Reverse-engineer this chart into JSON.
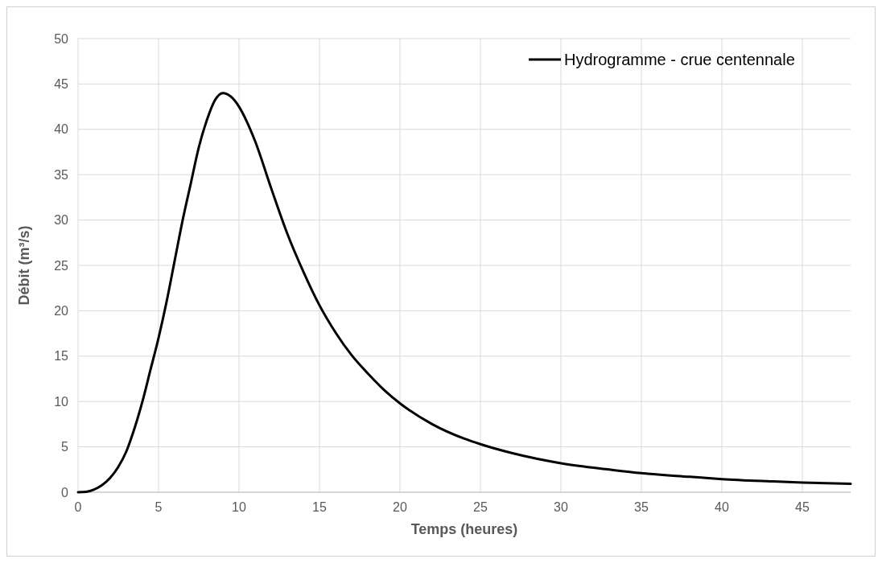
{
  "chart_data": {
    "type": "line",
    "xlabel": "Temps (heures)",
    "ylabel": "Débit (m³/s)",
    "xlim": [
      0,
      48
    ],
    "xticks": [
      0,
      5,
      10,
      15,
      20,
      25,
      30,
      35,
      40,
      45
    ],
    "ylim": [
      0,
      50
    ],
    "yticks": [
      0,
      5,
      10,
      15,
      20,
      25,
      30,
      35,
      40,
      45,
      50
    ],
    "grid": true,
    "legend": "top right",
    "marker": "none",
    "line_style": "solid",
    "series": [
      {
        "name": "Hydrogramme - crue centennale",
        "color": "#000000",
        "x": [
          0,
          0.5,
          1,
          1.5,
          2,
          2.5,
          3,
          3.5,
          4,
          4.5,
          5,
          5.5,
          6,
          6.5,
          7,
          7.5,
          8,
          8.5,
          9,
          9.5,
          10,
          10.5,
          11,
          12,
          13,
          14,
          15,
          16,
          17,
          18,
          19,
          20,
          22,
          24,
          25,
          27,
          30,
          33,
          35,
          38,
          40,
          43,
          45,
          48
        ],
        "values": [
          0,
          0.05,
          0.3,
          0.8,
          1.6,
          2.8,
          4.5,
          7,
          10,
          13.5,
          17,
          21,
          25.5,
          30,
          34,
          38,
          41,
          43.2,
          44,
          43.6,
          42.5,
          40.8,
          38.7,
          33.5,
          28.5,
          24.3,
          20.6,
          17.6,
          15.1,
          13.1,
          11.3,
          9.8,
          7.5,
          5.9,
          5.3,
          4.3,
          3.2,
          2.5,
          2.1,
          1.7,
          1.45,
          1.2,
          1.06,
          0.92
        ]
      }
    ]
  }
}
